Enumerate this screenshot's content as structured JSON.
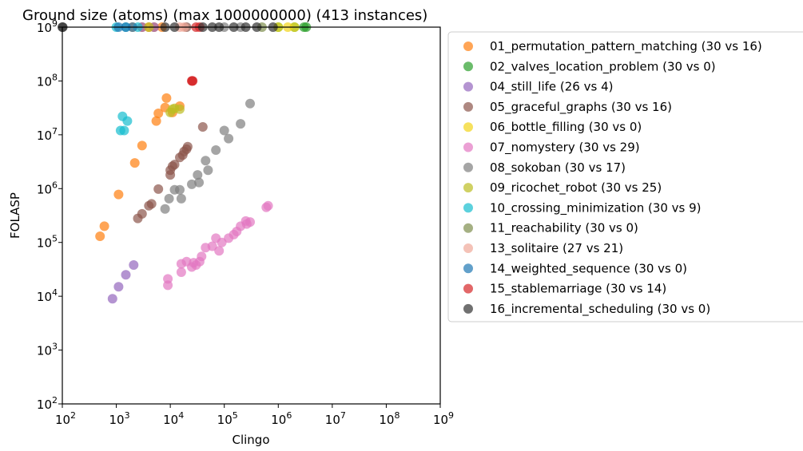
{
  "chart_data": {
    "type": "scatter",
    "title": "Ground size (atoms) (max 1000000000) (413 instances)",
    "xlabel": "Clingo",
    "ylabel": "FOLASP",
    "xscale": "log",
    "yscale": "log",
    "xlim": [
      100,
      1000000000
    ],
    "ylim": [
      100,
      1000000000
    ],
    "x_ticks": [
      {
        "base": "10",
        "exp": "2",
        "value": 100
      },
      {
        "base": "10",
        "exp": "3",
        "value": 1000
      },
      {
        "base": "10",
        "exp": "4",
        "value": 10000
      },
      {
        "base": "10",
        "exp": "5",
        "value": 100000
      },
      {
        "base": "10",
        "exp": "6",
        "value": 1000000
      },
      {
        "base": "10",
        "exp": "7",
        "value": 10000000
      },
      {
        "base": "10",
        "exp": "8",
        "value": 100000000
      },
      {
        "base": "10",
        "exp": "9",
        "value": 1000000000
      }
    ],
    "y_ticks": [
      {
        "base": "10",
        "exp": "2",
        "value": 100
      },
      {
        "base": "10",
        "exp": "3",
        "value": 1000
      },
      {
        "base": "10",
        "exp": "4",
        "value": 10000
      },
      {
        "base": "10",
        "exp": "5",
        "value": 100000
      },
      {
        "base": "10",
        "exp": "6",
        "value": 1000000
      },
      {
        "base": "10",
        "exp": "7",
        "value": 10000000
      },
      {
        "base": "10",
        "exp": "8",
        "value": 100000000
      },
      {
        "base": "10",
        "exp": "9",
        "value": 1000000000
      }
    ],
    "grid": false,
    "legend_position": "outside-right",
    "series": [
      {
        "name": "01_permutation_pattern_matching (30 vs 16)",
        "color": "#ff7f0e",
        "points": [
          [
            500,
            130000
          ],
          [
            600,
            200000
          ],
          [
            1100,
            780000
          ],
          [
            2200,
            3000000
          ],
          [
            3000,
            6300000
          ],
          [
            5500,
            18000000
          ],
          [
            6000,
            25000000
          ],
          [
            8000,
            32000000
          ],
          [
            8500,
            48000000
          ],
          [
            11000,
            26000000
          ],
          [
            15000,
            34000000
          ],
          [
            2000,
            1000000000
          ],
          [
            3000,
            1000000000
          ],
          [
            4000,
            1000000000
          ],
          [
            5000,
            1000000000
          ],
          [
            7000,
            1000000000
          ]
        ]
      },
      {
        "name": "02_valves_location_problem (30 vs 0)",
        "color": "#2ca02c",
        "points": [
          [
            1000000,
            1000000000
          ],
          [
            2000000,
            1000000000
          ],
          [
            3000000,
            1000000000
          ],
          [
            3300000,
            1000000000
          ]
        ]
      },
      {
        "name": "04_still_life (26 vs 4)",
        "color": "#9467bd",
        "points": [
          [
            850,
            9000
          ],
          [
            1100,
            15000
          ],
          [
            1500,
            25000
          ],
          [
            2100,
            38000
          ],
          [
            3000,
            1000000000
          ],
          [
            5000,
            1000000000
          ]
        ]
      },
      {
        "name": "05_graceful_graphs (30 vs 16)",
        "color": "#8c564b",
        "points": [
          [
            2500,
            280000
          ],
          [
            3000,
            340000
          ],
          [
            4000,
            480000
          ],
          [
            4500,
            520000
          ],
          [
            6000,
            980000
          ],
          [
            10000,
            1800000
          ],
          [
            10000,
            2200000
          ],
          [
            11000,
            2600000
          ],
          [
            12000,
            2800000
          ],
          [
            15000,
            3800000
          ],
          [
            17000,
            4200000
          ],
          [
            18000,
            4900000
          ],
          [
            20000,
            5400000
          ],
          [
            21000,
            6000000
          ],
          [
            40000,
            14000000
          ],
          [
            20000,
            1000000000
          ]
        ]
      },
      {
        "name": "06_bottle_filling (30 vs 0)",
        "color": "#f2d41a",
        "points": [
          [
            1000000,
            1000000000
          ],
          [
            1500000,
            1000000000
          ],
          [
            2000000,
            1000000000
          ]
        ]
      },
      {
        "name": "07_nomystery (30 vs 29)",
        "color": "#e377c2",
        "points": [
          [
            9000,
            16000
          ],
          [
            9000,
            21000
          ],
          [
            16000,
            28000
          ],
          [
            16000,
            40000
          ],
          [
            20000,
            44000
          ],
          [
            25000,
            35000
          ],
          [
            27000,
            42000
          ],
          [
            30000,
            38000
          ],
          [
            35000,
            44000
          ],
          [
            38000,
            55000
          ],
          [
            45000,
            80000
          ],
          [
            60000,
            85000
          ],
          [
            70000,
            120000
          ],
          [
            80000,
            70000
          ],
          [
            90000,
            100000
          ],
          [
            120000,
            120000
          ],
          [
            150000,
            140000
          ],
          [
            170000,
            160000
          ],
          [
            200000,
            200000
          ],
          [
            250000,
            250000
          ],
          [
            260000,
            220000
          ],
          [
            300000,
            240000
          ],
          [
            600000,
            450000
          ],
          [
            650000,
            480000
          ]
        ]
      },
      {
        "name": "08_sokoban (30 vs 17)",
        "color": "#7f7f7f",
        "points": [
          [
            8000,
            420000
          ],
          [
            9500,
            650000
          ],
          [
            12000,
            950000
          ],
          [
            15000,
            950000
          ],
          [
            16000,
            650000
          ],
          [
            25000,
            1200000
          ],
          [
            32000,
            1800000
          ],
          [
            34000,
            1300000
          ],
          [
            45000,
            3300000
          ],
          [
            50000,
            2200000
          ],
          [
            70000,
            5200000
          ],
          [
            100000,
            12000000
          ],
          [
            120000,
            8500000
          ],
          [
            200000,
            16000000
          ],
          [
            300000,
            38000000
          ],
          [
            100000,
            1000000000
          ],
          [
            200000,
            1000000000
          ]
        ]
      },
      {
        "name": "09_ricochet_robot (30 vs 25)",
        "color": "#bcbd22",
        "points": [
          [
            10000,
            26000000
          ],
          [
            11000,
            30000000
          ],
          [
            12000,
            31000000
          ],
          [
            15000,
            30000000
          ],
          [
            4000,
            1000000000
          ]
        ]
      },
      {
        "name": "10_crossing_minimization (30 vs 9)",
        "color": "#17becf",
        "points": [
          [
            1200,
            12000000
          ],
          [
            1300,
            22000000
          ],
          [
            1400,
            12000000
          ],
          [
            1600,
            18000000
          ],
          [
            1000,
            1000000000
          ],
          [
            1500,
            1000000000
          ],
          [
            2500,
            1000000000
          ]
        ]
      },
      {
        "name": "11_reachability (30 vs 0)",
        "color": "#7f8f4f",
        "points": [
          [
            500000,
            1000000000
          ]
        ]
      },
      {
        "name": "13_solitaire (27 vs 21)",
        "color": "#f0a898",
        "points": [
          [
            15000,
            1000000000
          ],
          [
            18000,
            1000000000
          ]
        ]
      },
      {
        "name": "14_weighted_sequence (30 vs 0)",
        "color": "#1f77b4",
        "points": [
          [
            1100,
            1000000000
          ],
          [
            1500,
            1000000000
          ],
          [
            2000,
            1000000000
          ]
        ]
      },
      {
        "name": "15_stablemarriage (30 vs 14)",
        "color": "#d62728",
        "points": [
          [
            25000,
            100000000
          ],
          [
            25500,
            100000000
          ],
          [
            26000,
            100000000
          ],
          [
            30000,
            1000000000
          ],
          [
            35000,
            1000000000
          ]
        ]
      },
      {
        "name": "16_incremental_scheduling (30 vs 0)",
        "color": "#333333",
        "points": [
          [
            100,
            1000000000
          ],
          [
            102,
            1000000000
          ],
          [
            8000,
            1000000000
          ],
          [
            12000,
            1000000000
          ],
          [
            40000,
            1000000000
          ],
          [
            60000,
            1000000000
          ],
          [
            80000,
            1000000000
          ],
          [
            150000,
            1000000000
          ],
          [
            250000,
            1000000000
          ],
          [
            400000,
            1000000000
          ],
          [
            800000,
            1000000000
          ]
        ]
      }
    ]
  }
}
